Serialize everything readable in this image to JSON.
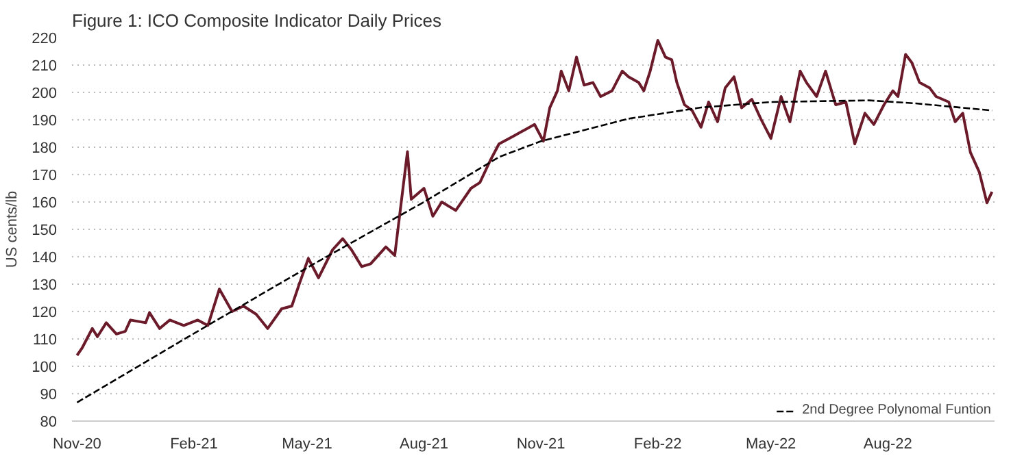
{
  "chart_data": {
    "type": "line",
    "title": "Figure 1: ICO Composite Indicator Daily Prices",
    "ylabel": "US cents/lb",
    "xlim": [
      "2020-10-28",
      "2022-10-24"
    ],
    "ylim": [
      80,
      220
    ],
    "xticks": [
      {
        "value": "2020-11-01",
        "label": "Nov-20"
      },
      {
        "value": "2021-02-01",
        "label": "Feb-21"
      },
      {
        "value": "2021-05-01",
        "label": "May-21"
      },
      {
        "value": "2021-08-01",
        "label": "Aug-21"
      },
      {
        "value": "2021-11-01",
        "label": "Nov-21"
      },
      {
        "value": "2022-02-01",
        "label": "Feb-22"
      },
      {
        "value": "2022-05-01",
        "label": "May-22"
      },
      {
        "value": "2022-08-01",
        "label": "Aug-22"
      }
    ],
    "yticks": [
      80,
      90,
      100,
      110,
      120,
      130,
      140,
      150,
      160,
      170,
      180,
      190,
      200,
      210,
      220
    ],
    "grid": "y",
    "legend": "bottom right",
    "series": [
      {
        "color": "#6b1a2a",
        "line_style": "solid",
        "x": [
          "2020-11-01",
          "2020-11-05",
          "2020-11-13",
          "2020-11-17",
          "2020-11-24",
          "2020-12-02",
          "2020-12-09",
          "2020-12-13",
          "2020-12-25",
          "2020-12-28",
          "2021-01-05",
          "2021-01-13",
          "2021-01-24",
          "2021-02-04",
          "2021-02-12",
          "2021-02-21",
          "2021-03-03",
          "2021-03-12",
          "2021-03-22",
          "2021-03-31",
          "2021-04-11",
          "2021-04-19",
          "2021-04-25",
          "2021-05-02",
          "2021-05-10",
          "2021-05-21",
          "2021-05-29",
          "2021-06-05",
          "2021-06-13",
          "2021-06-20",
          "2021-07-02",
          "2021-07-09",
          "2021-07-19",
          "2021-07-22",
          "2021-08-01",
          "2021-08-08",
          "2021-08-15",
          "2021-08-26",
          "2021-09-07",
          "2021-09-14",
          "2021-09-22",
          "2021-09-29",
          "2021-10-11",
          "2021-10-27",
          "2021-11-03",
          "2021-11-08",
          "2021-11-14",
          "2021-11-17",
          "2021-11-23",
          "2021-11-29",
          "2021-12-05",
          "2021-12-12",
          "2021-12-18",
          "2021-12-27",
          "2022-01-04",
          "2022-01-09",
          "2022-01-17",
          "2022-01-21",
          "2022-01-26",
          "2022-02-01",
          "2022-02-07",
          "2022-02-12",
          "2022-02-16",
          "2022-02-22",
          "2022-02-28",
          "2022-03-07",
          "2022-03-13",
          "2022-03-20",
          "2022-03-26",
          "2022-04-02",
          "2022-04-08",
          "2022-04-16",
          "2022-04-23",
          "2022-05-01",
          "2022-05-09",
          "2022-05-16",
          "2022-05-24",
          "2022-05-29",
          "2022-06-06",
          "2022-06-13",
          "2022-06-21",
          "2022-06-29",
          "2022-07-06",
          "2022-07-14",
          "2022-07-21",
          "2022-07-29",
          "2022-08-05",
          "2022-08-09",
          "2022-08-15",
          "2022-08-20",
          "2022-08-26",
          "2022-09-03",
          "2022-09-08",
          "2022-09-18",
          "2022-09-23",
          "2022-09-29",
          "2022-10-05",
          "2022-10-12",
          "2022-10-18",
          "2022-10-22"
        ],
        "values": [
          104,
          106.7,
          113.8,
          110.8,
          115.9,
          111.8,
          112.8,
          116.9,
          115.9,
          119.6,
          113.8,
          116.9,
          114.9,
          116.9,
          114.9,
          128.2,
          120,
          122,
          119,
          113.8,
          121,
          122,
          130.2,
          139.4,
          132.3,
          142.5,
          146.6,
          142.5,
          136.4,
          137.4,
          143.6,
          140.5,
          178.4,
          161,
          165,
          154.8,
          160,
          156.9,
          165,
          167.1,
          175,
          181.2,
          184.2,
          188.3,
          182.2,
          194.4,
          200.6,
          207.8,
          200.6,
          212.9,
          202.7,
          203.6,
          198.5,
          200.6,
          207.8,
          205.7,
          203.6,
          200.6,
          207.8,
          219,
          212.9,
          211.9,
          203.6,
          195.5,
          193.4,
          187.3,
          196.5,
          189.3,
          201.6,
          205.7,
          194.4,
          197.5,
          190.4,
          183.2,
          198.5,
          189.3,
          207.8,
          203.6,
          198.5,
          207.8,
          195.5,
          196.5,
          181.2,
          192.4,
          188.3,
          195.5,
          200.6,
          198.5,
          213.9,
          210.8,
          203.6,
          201.6,
          198.5,
          196.5,
          189.3,
          192.4,
          178.1,
          170.9,
          159.7,
          163.7
        ]
      },
      {
        "name": "2nd Degree Polynomal Funtion",
        "color": "#000000",
        "line_style": "dashed",
        "x": [
          "2020-11-01",
          "2021-02-01",
          "2021-05-01",
          "2021-08-01",
          "2021-09-29",
          "2021-11-01",
          "2022-01-09",
          "2022-03-07",
          "2022-05-01",
          "2022-07-17",
          "2022-08-23",
          "2022-10-22"
        ],
        "values": [
          86.8,
          112,
          136,
          160,
          176.4,
          182.2,
          190.4,
          194.5,
          196.5,
          197.1,
          196,
          193.4
        ]
      }
    ]
  }
}
